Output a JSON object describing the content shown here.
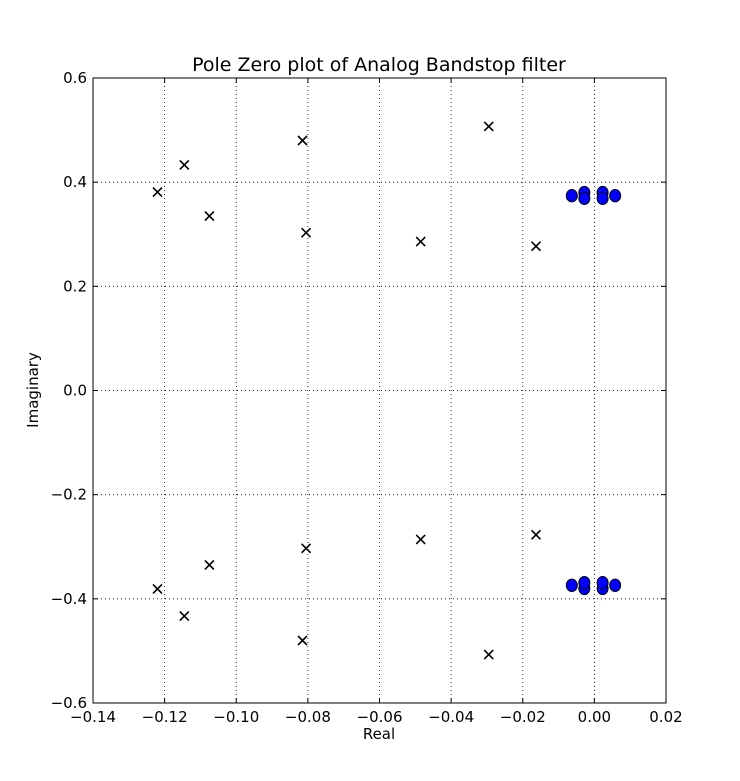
{
  "chart_data": {
    "type": "scatter",
    "title": "Pole Zero plot of Analog Bandstop filter",
    "xlabel": "Real",
    "ylabel": "Imaginary",
    "xlim": [
      -0.14,
      0.02
    ],
    "ylim": [
      -0.6,
      0.6
    ],
    "x_ticks": [
      "−0.14",
      "−0.12",
      "−0.10",
      "−0.08",
      "−0.06",
      "−0.04",
      "−0.02",
      "0.00",
      "0.02"
    ],
    "y_ticks": [
      "−0.6",
      "−0.4",
      "−0.2",
      "0.0",
      "0.2",
      "0.4",
      "0.6"
    ],
    "x_tick_values": [
      -0.14,
      -0.12,
      -0.1,
      -0.08,
      -0.06,
      -0.04,
      -0.02,
      0.0,
      0.02
    ],
    "y_tick_values": [
      -0.6,
      -0.4,
      -0.2,
      0.0,
      0.2,
      0.4,
      0.6
    ],
    "grid": true,
    "series": [
      {
        "marker": "x",
        "color": "#000000",
        "points": [
          [
            -0.122,
            0.381
          ],
          [
            -0.1145,
            0.433
          ],
          [
            -0.1075,
            0.335
          ],
          [
            -0.0815,
            0.48
          ],
          [
            -0.0805,
            0.303
          ],
          [
            -0.0485,
            0.286
          ],
          [
            -0.0295,
            0.507
          ],
          [
            -0.0163,
            0.277
          ],
          [
            -0.122,
            -0.381
          ],
          [
            -0.1145,
            -0.433
          ],
          [
            -0.1075,
            -0.335
          ],
          [
            -0.0815,
            -0.48
          ],
          [
            -0.0805,
            -0.303
          ],
          [
            -0.0485,
            -0.286
          ],
          [
            -0.0295,
            -0.507
          ],
          [
            -0.0163,
            -0.277
          ]
        ]
      },
      {
        "marker": "o",
        "color": "#0000ff",
        "points": [
          [
            -0.0063,
            0.374
          ],
          [
            -0.0028,
            0.38
          ],
          [
            -0.0028,
            0.369
          ],
          [
            0.0023,
            0.38
          ],
          [
            0.0023,
            0.369
          ],
          [
            0.0058,
            0.374
          ],
          [
            -0.0063,
            -0.374
          ],
          [
            -0.0028,
            -0.38
          ],
          [
            -0.0028,
            -0.369
          ],
          [
            0.0023,
            -0.38
          ],
          [
            0.0023,
            -0.369
          ],
          [
            0.0058,
            -0.374
          ]
        ]
      }
    ]
  }
}
